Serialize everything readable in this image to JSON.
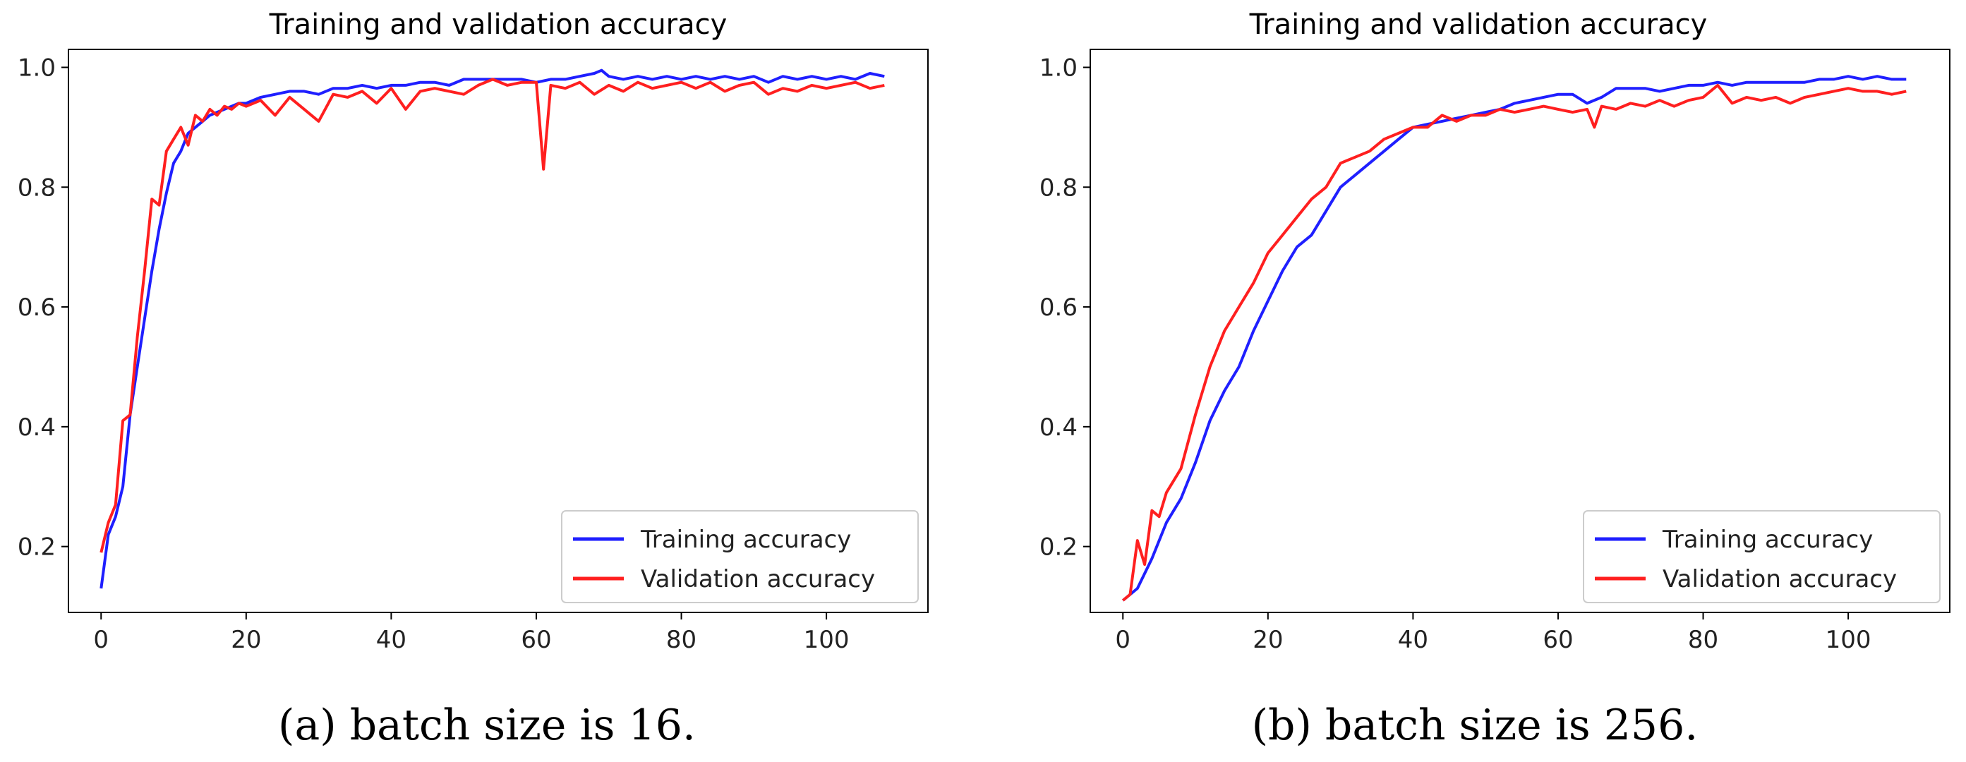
{
  "chart_data": [
    {
      "type": "line",
      "title": "Training and validation accuracy",
      "caption": "(a)  batch size is 16.",
      "xlabel": "",
      "ylabel": "",
      "xlim": [
        -4.5,
        114
      ],
      "ylim": [
        0.09,
        1.03
      ],
      "xticks": [
        0,
        20,
        40,
        60,
        80,
        100
      ],
      "yticks": [
        0.2,
        0.4,
        0.6,
        0.8,
        1.0
      ],
      "legend_position": "bottom-right",
      "series": [
        {
          "name": "Training accuracy",
          "color": "#1f1fff",
          "x": [
            0,
            1,
            2,
            3,
            4,
            5,
            6,
            7,
            8,
            9,
            10,
            11,
            12,
            13,
            14,
            15,
            16,
            17,
            18,
            19,
            20,
            22,
            24,
            26,
            28,
            30,
            32,
            34,
            36,
            38,
            40,
            42,
            44,
            46,
            48,
            50,
            52,
            54,
            56,
            58,
            60,
            62,
            64,
            66,
            68,
            69,
            70,
            72,
            74,
            76,
            78,
            80,
            82,
            84,
            86,
            88,
            90,
            92,
            94,
            96,
            98,
            100,
            102,
            104,
            106,
            108
          ],
          "y": [
            0.13,
            0.22,
            0.25,
            0.3,
            0.42,
            0.5,
            0.58,
            0.66,
            0.73,
            0.79,
            0.84,
            0.86,
            0.89,
            0.9,
            0.91,
            0.92,
            0.925,
            0.93,
            0.935,
            0.94,
            0.94,
            0.95,
            0.955,
            0.96,
            0.96,
            0.955,
            0.965,
            0.965,
            0.97,
            0.965,
            0.97,
            0.97,
            0.975,
            0.975,
            0.97,
            0.98,
            0.98,
            0.98,
            0.98,
            0.98,
            0.975,
            0.98,
            0.98,
            0.985,
            0.99,
            0.995,
            0.985,
            0.98,
            0.985,
            0.98,
            0.985,
            0.98,
            0.985,
            0.98,
            0.985,
            0.98,
            0.985,
            0.975,
            0.985,
            0.98,
            0.985,
            0.98,
            0.985,
            0.98,
            0.99,
            0.985
          ]
        },
        {
          "name": "Validation accuracy",
          "color": "#ff1f1f",
          "x": [
            0,
            1,
            2,
            3,
            4,
            5,
            6,
            7,
            8,
            9,
            10,
            11,
            12,
            13,
            14,
            15,
            16,
            17,
            18,
            19,
            20,
            22,
            24,
            26,
            28,
            30,
            32,
            34,
            36,
            38,
            40,
            42,
            44,
            46,
            48,
            50,
            52,
            54,
            56,
            58,
            60,
            61,
            62,
            64,
            66,
            68,
            70,
            72,
            74,
            76,
            78,
            80,
            82,
            84,
            86,
            88,
            90,
            92,
            94,
            96,
            98,
            100,
            102,
            104,
            106,
            108
          ],
          "y": [
            0.19,
            0.24,
            0.27,
            0.41,
            0.42,
            0.55,
            0.66,
            0.78,
            0.77,
            0.86,
            0.88,
            0.9,
            0.87,
            0.92,
            0.91,
            0.93,
            0.92,
            0.935,
            0.93,
            0.94,
            0.935,
            0.945,
            0.92,
            0.95,
            0.93,
            0.91,
            0.955,
            0.95,
            0.96,
            0.94,
            0.965,
            0.93,
            0.96,
            0.965,
            0.96,
            0.955,
            0.97,
            0.98,
            0.97,
            0.975,
            0.975,
            0.83,
            0.97,
            0.965,
            0.975,
            0.955,
            0.97,
            0.96,
            0.975,
            0.965,
            0.97,
            0.975,
            0.965,
            0.975,
            0.96,
            0.97,
            0.975,
            0.955,
            0.965,
            0.96,
            0.97,
            0.965,
            0.97,
            0.975,
            0.965,
            0.97
          ]
        }
      ]
    },
    {
      "type": "line",
      "title": "Training and validation accuracy",
      "caption": "(b)  batch size is 256.",
      "xlabel": "",
      "ylabel": "",
      "xlim": [
        -4.5,
        114
      ],
      "ylim": [
        0.09,
        1.03
      ],
      "xticks": [
        0,
        20,
        40,
        60,
        80,
        100
      ],
      "yticks": [
        0.2,
        0.4,
        0.6,
        0.8,
        1.0
      ],
      "legend_position": "bottom-right",
      "series": [
        {
          "name": "Training accuracy",
          "color": "#1f1fff",
          "x": [
            0,
            2,
            4,
            6,
            8,
            10,
            12,
            14,
            16,
            18,
            20,
            22,
            24,
            26,
            28,
            30,
            32,
            34,
            36,
            38,
            40,
            42,
            44,
            46,
            48,
            50,
            52,
            54,
            56,
            58,
            60,
            62,
            64,
            66,
            68,
            70,
            72,
            74,
            76,
            78,
            80,
            82,
            84,
            86,
            88,
            90,
            92,
            94,
            96,
            98,
            100,
            102,
            104,
            106,
            108
          ],
          "y": [
            0.11,
            0.13,
            0.18,
            0.24,
            0.28,
            0.34,
            0.41,
            0.46,
            0.5,
            0.56,
            0.61,
            0.66,
            0.7,
            0.72,
            0.76,
            0.8,
            0.82,
            0.84,
            0.86,
            0.88,
            0.9,
            0.905,
            0.91,
            0.915,
            0.92,
            0.925,
            0.93,
            0.94,
            0.945,
            0.95,
            0.955,
            0.955,
            0.94,
            0.95,
            0.965,
            0.965,
            0.965,
            0.96,
            0.965,
            0.97,
            0.97,
            0.975,
            0.97,
            0.975,
            0.975,
            0.975,
            0.975,
            0.975,
            0.98,
            0.98,
            0.985,
            0.98,
            0.985,
            0.98,
            0.98
          ]
        },
        {
          "name": "Validation accuracy",
          "color": "#ff1f1f",
          "x": [
            0,
            1,
            2,
            3,
            4,
            5,
            6,
            8,
            10,
            12,
            14,
            16,
            18,
            20,
            22,
            24,
            26,
            28,
            30,
            32,
            34,
            36,
            38,
            40,
            42,
            44,
            46,
            48,
            50,
            52,
            54,
            56,
            58,
            60,
            62,
            64,
            65,
            66,
            68,
            70,
            72,
            74,
            76,
            78,
            80,
            82,
            84,
            86,
            88,
            90,
            92,
            94,
            96,
            98,
            100,
            102,
            104,
            106,
            108
          ],
          "y": [
            0.11,
            0.12,
            0.21,
            0.17,
            0.26,
            0.25,
            0.29,
            0.33,
            0.42,
            0.5,
            0.56,
            0.6,
            0.64,
            0.69,
            0.72,
            0.75,
            0.78,
            0.8,
            0.84,
            0.85,
            0.86,
            0.88,
            0.89,
            0.9,
            0.9,
            0.92,
            0.91,
            0.92,
            0.92,
            0.93,
            0.925,
            0.93,
            0.935,
            0.93,
            0.925,
            0.93,
            0.9,
            0.935,
            0.93,
            0.94,
            0.935,
            0.945,
            0.935,
            0.945,
            0.95,
            0.97,
            0.94,
            0.95,
            0.945,
            0.95,
            0.94,
            0.95,
            0.955,
            0.96,
            0.965,
            0.96,
            0.96,
            0.955,
            0.96
          ]
        }
      ]
    }
  ]
}
